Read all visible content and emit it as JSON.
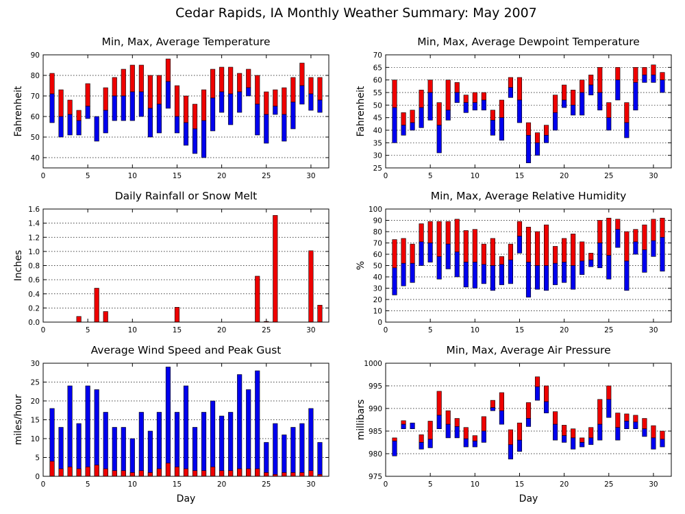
{
  "page": {
    "title": "Cedar Rapids, IA Monthly Weather Summary: May 2007"
  },
  "colors": {
    "red": "#ee0000",
    "blue": "#0000ee",
    "frame": "#000000"
  },
  "chart_data": [
    {
      "id": "temperature",
      "type": "floating-bar",
      "title": "Min, Max, Average Temperature",
      "xlabel": "",
      "ylabel": "Fahrenheit",
      "xlim": [
        0,
        32
      ],
      "ylim": [
        35,
        90
      ],
      "yticks": [
        40,
        50,
        60,
        70,
        80,
        90
      ],
      "xticks": [
        0,
        5,
        10,
        15,
        20,
        25,
        30
      ],
      "x": [
        1,
        2,
        3,
        4,
        5,
        6,
        7,
        8,
        9,
        10,
        11,
        12,
        13,
        14,
        15,
        16,
        17,
        18,
        19,
        20,
        21,
        22,
        23,
        24,
        25,
        26,
        27,
        28,
        29,
        30,
        31
      ],
      "min": [
        57,
        50,
        51,
        51,
        59,
        48,
        52,
        58,
        58,
        58,
        60,
        50,
        52,
        64,
        52,
        46,
        42,
        40,
        53,
        62,
        56,
        62,
        70,
        51,
        47,
        61,
        48,
        54,
        66,
        63,
        62
      ],
      "avg": [
        71,
        60,
        61,
        58,
        65,
        60,
        63,
        70,
        70,
        72,
        72,
        64,
        66,
        77,
        60,
        57,
        54,
        58,
        69,
        72,
        71,
        72,
        74,
        66,
        61,
        65,
        61,
        67,
        75,
        71,
        68
      ],
      "max": [
        81,
        73,
        68,
        63,
        76,
        60,
        74,
        79,
        83,
        85,
        85,
        80,
        80,
        88,
        75,
        70,
        66,
        73,
        83,
        84,
        84,
        81,
        83,
        80,
        72,
        73,
        74,
        79,
        86,
        79,
        79
      ]
    },
    {
      "id": "dewpoint",
      "type": "floating-bar",
      "title": "Min, Max, Average Dewpoint Temperature",
      "xlabel": "",
      "ylabel": "Fahrenheit",
      "xlim": [
        0,
        32
      ],
      "ylim": [
        25,
        70
      ],
      "yticks": [
        25,
        30,
        35,
        40,
        45,
        50,
        55,
        60,
        65,
        70
      ],
      "xticks": [
        0,
        5,
        10,
        15,
        20,
        25,
        30
      ],
      "x": [
        1,
        2,
        3,
        4,
        5,
        6,
        7,
        8,
        9,
        10,
        11,
        12,
        13,
        14,
        15,
        16,
        17,
        18,
        19,
        20,
        21,
        22,
        23,
        24,
        25,
        26,
        27,
        28,
        29,
        30,
        31
      ],
      "min": [
        35,
        38,
        40,
        41,
        44,
        31,
        44,
        51,
        47,
        48,
        48,
        38,
        36,
        53,
        43,
        27,
        30,
        35,
        40,
        49,
        46,
        46,
        54,
        48,
        40,
        52,
        37,
        48,
        59,
        59,
        55
      ],
      "avg": [
        49,
        42,
        43,
        49,
        55,
        42,
        48,
        55,
        51,
        51,
        52,
        44,
        45,
        57,
        52,
        38,
        35,
        38,
        47,
        52,
        50,
        55,
        58,
        55,
        45,
        60,
        43,
        59,
        62,
        62,
        60
      ],
      "max": [
        60,
        47,
        48,
        56,
        60,
        51,
        60,
        59,
        54,
        55,
        55,
        48,
        52,
        61,
        61,
        43,
        39,
        42,
        54,
        58,
        56,
        60,
        62,
        65,
        51,
        65,
        51,
        65,
        65,
        66,
        63
      ]
    },
    {
      "id": "rainfall",
      "type": "bar",
      "title": "Daily Rainfall or Snow Melt",
      "xlabel": "",
      "ylabel": "Inches",
      "xlim": [
        0,
        32
      ],
      "ylim": [
        0,
        1.6
      ],
      "yticks": [
        0.0,
        0.2,
        0.4,
        0.6,
        0.8,
        1.0,
        1.2,
        1.4,
        1.6
      ],
      "ytick_labels": [
        "0.0",
        "0.2",
        "0.4",
        "0.6",
        "0.8",
        "1.0",
        "1.2",
        "1.4",
        "1.6"
      ],
      "xticks": [
        0,
        5,
        10,
        15,
        20,
        25,
        30
      ],
      "x": [
        1,
        2,
        3,
        4,
        5,
        6,
        7,
        8,
        9,
        10,
        11,
        12,
        13,
        14,
        15,
        16,
        17,
        18,
        19,
        20,
        21,
        22,
        23,
        24,
        25,
        26,
        27,
        28,
        29,
        30,
        31
      ],
      "values": [
        0,
        0,
        0,
        0.08,
        0,
        0.48,
        0.15,
        0,
        0,
        0,
        0,
        0,
        0,
        0,
        0.21,
        0,
        0,
        0,
        0,
        0,
        0,
        0,
        0,
        0.65,
        0.01,
        1.51,
        0,
        0,
        0,
        1.01,
        0.24
      ]
    },
    {
      "id": "humidity",
      "type": "floating-bar",
      "title": "Min, Max, Average Relative Humidity",
      "xlabel": "",
      "ylabel": "%",
      "xlim": [
        0,
        32
      ],
      "ylim": [
        0,
        100
      ],
      "yticks": [
        0,
        10,
        20,
        30,
        40,
        50,
        60,
        70,
        80,
        90,
        100
      ],
      "xticks": [
        0,
        5,
        10,
        15,
        20,
        25,
        30
      ],
      "x": [
        1,
        2,
        3,
        4,
        5,
        6,
        7,
        8,
        9,
        10,
        11,
        12,
        13,
        14,
        15,
        16,
        17,
        18,
        19,
        20,
        21,
        22,
        23,
        24,
        25,
        26,
        27,
        28,
        29,
        30,
        31
      ],
      "min": [
        24,
        32,
        35,
        50,
        53,
        38,
        47,
        40,
        31,
        30,
        34,
        28,
        33,
        34,
        61,
        22,
        29,
        28,
        33,
        35,
        29,
        42,
        49,
        48,
        38,
        66,
        28,
        60,
        44,
        58,
        45
      ],
      "avg": [
        48,
        52,
        52,
        71,
        70,
        58,
        69,
        62,
        53,
        53,
        51,
        50,
        51,
        55,
        76,
        53,
        50,
        50,
        52,
        53,
        50,
        54,
        55,
        70,
        59,
        82,
        54,
        71,
        64,
        72,
        75
      ],
      "max": [
        73,
        74,
        69,
        87,
        89,
        89,
        89,
        91,
        81,
        82,
        69,
        74,
        58,
        69,
        89,
        84,
        80,
        86,
        67,
        74,
        78,
        71,
        61,
        90,
        92,
        91,
        80,
        82,
        86,
        91,
        92
      ]
    },
    {
      "id": "wind",
      "type": "bar",
      "title": "Average Wind Speed and Peak Gust",
      "xlabel": "Day",
      "ylabel": "miles/hour",
      "xlim": [
        0,
        32
      ],
      "ylim": [
        0,
        30
      ],
      "yticks": [
        0,
        5,
        10,
        15,
        20,
        25,
        30
      ],
      "xticks": [
        0,
        5,
        10,
        15,
        20,
        25,
        30
      ],
      "x": [
        1,
        2,
        3,
        4,
        5,
        6,
        7,
        8,
        9,
        10,
        11,
        12,
        13,
        14,
        15,
        16,
        17,
        18,
        19,
        20,
        21,
        22,
        23,
        24,
        25,
        26,
        27,
        28,
        29,
        30,
        31
      ],
      "series": [
        {
          "name": "",
          "role": "peak-gust",
          "color": "#0000ee",
          "values": [
            18,
            13,
            24,
            14,
            24,
            23,
            17,
            13,
            13,
            10,
            17,
            12,
            17,
            29,
            17,
            24,
            13,
            17,
            20,
            16,
            17,
            27,
            23,
            28,
            9,
            14,
            11,
            13,
            14,
            18,
            9
          ]
        },
        {
          "name": "",
          "role": "average",
          "color": "#ee0000",
          "values": [
            4,
            2,
            2.5,
            2,
            2.5,
            3,
            2,
            1.5,
            1.5,
            1,
            1.5,
            1,
            2,
            3.5,
            2.5,
            2,
            1.5,
            1.5,
            2.5,
            1.5,
            1.5,
            2,
            2,
            2,
            1,
            0.5,
            1,
            1,
            1,
            1.5,
            0.5
          ]
        }
      ]
    },
    {
      "id": "pressure",
      "type": "floating-bar",
      "title": "Min, Max, Average Air Pressure",
      "xlabel": "Day",
      "ylabel": "millibars",
      "xlim": [
        0,
        32
      ],
      "ylim": [
        975,
        1000
      ],
      "yticks": [
        975,
        980,
        985,
        990,
        995,
        1000
      ],
      "xticks": [
        0,
        5,
        10,
        15,
        20,
        25,
        30
      ],
      "x": [
        1,
        2,
        3,
        4,
        5,
        6,
        7,
        8,
        9,
        10,
        11,
        12,
        13,
        14,
        15,
        16,
        17,
        18,
        19,
        20,
        21,
        22,
        23,
        24,
        25,
        26,
        27,
        28,
        29,
        30,
        31
      ],
      "min": [
        979.5,
        985.5,
        985.5,
        981,
        981.3,
        985.5,
        983.5,
        983.5,
        981.5,
        981.5,
        982.5,
        989.5,
        986.5,
        978.8,
        980.5,
        986,
        991.8,
        989,
        983,
        982.5,
        981,
        981.5,
        982,
        983,
        988,
        983,
        985.5,
        985.5,
        983.8,
        981,
        981.5
      ],
      "avg": [
        982.8,
        986.5,
        986.8,
        982.5,
        983.2,
        988.5,
        986.5,
        986,
        983.3,
        982.8,
        985,
        990.2,
        989.5,
        982,
        983,
        987.8,
        994.8,
        991.5,
        986.5,
        984,
        983.5,
        982.5,
        983.5,
        986.5,
        992,
        985.8,
        987.2,
        987,
        985.5,
        983.5,
        983.2
      ],
      "max": [
        983.5,
        987.3,
        986.8,
        984.2,
        987.2,
        993.8,
        989.5,
        987.8,
        985.8,
        984,
        988.2,
        991.8,
        993.5,
        985.3,
        986.8,
        991.3,
        997,
        995,
        989.3,
        986.3,
        985.5,
        983.5,
        985.8,
        992,
        995,
        989,
        988.8,
        988.5,
        987.8,
        986.2,
        985
      ]
    }
  ]
}
